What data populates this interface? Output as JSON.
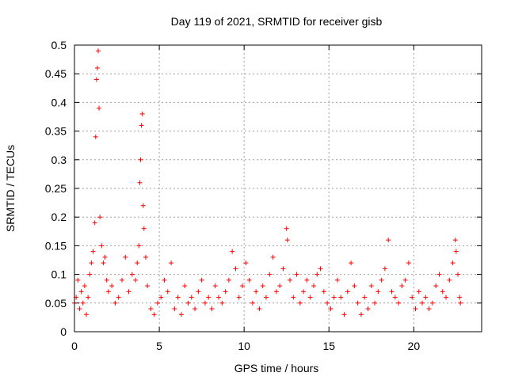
{
  "chart_data": {
    "type": "scatter",
    "title": "Day 119 of 2021, SRMTID for receiver gisb",
    "xlabel": "GPS time / hours",
    "ylabel": "SRMTID / TECUs",
    "xlim": [
      0,
      24
    ],
    "ylim": [
      0,
      0.5
    ],
    "x_ticks": [
      0,
      5,
      10,
      15,
      20
    ],
    "y_ticks": [
      0,
      0.05,
      0.1,
      0.15,
      0.2,
      0.25,
      0.3,
      0.35,
      0.4,
      0.45,
      0.5
    ],
    "x_tick_labels": [
      "0",
      "5",
      "10",
      "15",
      "20"
    ],
    "y_tick_labels": [
      "0",
      "0.05",
      "0.1",
      "0.15",
      "0.2",
      "0.25",
      "0.3",
      "0.35",
      "0.4",
      "0.45",
      "0.5"
    ],
    "grid": true,
    "marker": "+",
    "color": "#ff0000",
    "series": [
      {
        "name": "SRMTID",
        "points": [
          [
            0.0,
            0.05
          ],
          [
            0.1,
            0.06
          ],
          [
            0.2,
            0.09
          ],
          [
            0.3,
            0.04
          ],
          [
            0.4,
            0.07
          ],
          [
            0.5,
            0.05
          ],
          [
            0.6,
            0.08
          ],
          [
            0.7,
            0.03
          ],
          [
            0.8,
            0.06
          ],
          [
            0.9,
            0.1
          ],
          [
            1.0,
            0.12
          ],
          [
            1.1,
            0.14
          ],
          [
            1.2,
            0.19
          ],
          [
            1.25,
            0.34
          ],
          [
            1.3,
            0.44
          ],
          [
            1.35,
            0.46
          ],
          [
            1.4,
            0.49
          ],
          [
            1.45,
            0.39
          ],
          [
            1.5,
            0.2
          ],
          [
            1.6,
            0.15
          ],
          [
            1.7,
            0.12
          ],
          [
            1.8,
            0.13
          ],
          [
            1.9,
            0.09
          ],
          [
            2.0,
            0.07
          ],
          [
            2.2,
            0.08
          ],
          [
            2.4,
            0.05
          ],
          [
            2.6,
            0.06
          ],
          [
            2.8,
            0.09
          ],
          [
            3.0,
            0.13
          ],
          [
            3.2,
            0.07
          ],
          [
            3.4,
            0.1
          ],
          [
            3.6,
            0.09
          ],
          [
            3.7,
            0.12
          ],
          [
            3.8,
            0.15
          ],
          [
            3.85,
            0.26
          ],
          [
            3.9,
            0.3
          ],
          [
            3.95,
            0.36
          ],
          [
            4.0,
            0.38
          ],
          [
            4.05,
            0.22
          ],
          [
            4.1,
            0.18
          ],
          [
            4.2,
            0.13
          ],
          [
            4.3,
            0.08
          ],
          [
            4.5,
            0.04
          ],
          [
            4.7,
            0.03
          ],
          [
            4.9,
            0.05
          ],
          [
            5.1,
            0.06
          ],
          [
            5.3,
            0.09
          ],
          [
            5.5,
            0.07
          ],
          [
            5.7,
            0.12
          ],
          [
            5.9,
            0.04
          ],
          [
            6.1,
            0.06
          ],
          [
            6.3,
            0.03
          ],
          [
            6.5,
            0.08
          ],
          [
            6.7,
            0.05
          ],
          [
            6.9,
            0.06
          ],
          [
            7.1,
            0.04
          ],
          [
            7.3,
            0.07
          ],
          [
            7.5,
            0.09
          ],
          [
            7.7,
            0.05
          ],
          [
            7.9,
            0.06
          ],
          [
            8.1,
            0.04
          ],
          [
            8.3,
            0.08
          ],
          [
            8.5,
            0.06
          ],
          [
            8.7,
            0.05
          ],
          [
            8.9,
            0.07
          ],
          [
            9.1,
            0.09
          ],
          [
            9.3,
            0.14
          ],
          [
            9.5,
            0.11
          ],
          [
            9.7,
            0.06
          ],
          [
            9.9,
            0.08
          ],
          [
            10.1,
            0.12
          ],
          [
            10.3,
            0.09
          ],
          [
            10.5,
            0.05
          ],
          [
            10.7,
            0.07
          ],
          [
            10.9,
            0.04
          ],
          [
            11.1,
            0.08
          ],
          [
            11.3,
            0.06
          ],
          [
            11.5,
            0.1
          ],
          [
            11.7,
            0.13
          ],
          [
            11.9,
            0.07
          ],
          [
            12.1,
            0.08
          ],
          [
            12.3,
            0.11
          ],
          [
            12.5,
            0.18
          ],
          [
            12.55,
            0.16
          ],
          [
            12.7,
            0.09
          ],
          [
            12.9,
            0.06
          ],
          [
            13.1,
            0.1
          ],
          [
            13.3,
            0.05
          ],
          [
            13.5,
            0.07
          ],
          [
            13.7,
            0.09
          ],
          [
            13.9,
            0.06
          ],
          [
            14.1,
            0.08
          ],
          [
            14.3,
            0.1
          ],
          [
            14.5,
            0.11
          ],
          [
            14.7,
            0.07
          ],
          [
            14.9,
            0.05
          ],
          [
            15.1,
            0.04
          ],
          [
            15.3,
            0.06
          ],
          [
            15.5,
            0.09
          ],
          [
            15.7,
            0.06
          ],
          [
            15.9,
            0.03
          ],
          [
            16.1,
            0.07
          ],
          [
            16.3,
            0.12
          ],
          [
            16.5,
            0.08
          ],
          [
            16.7,
            0.05
          ],
          [
            16.9,
            0.03
          ],
          [
            17.1,
            0.06
          ],
          [
            17.3,
            0.04
          ],
          [
            17.5,
            0.08
          ],
          [
            17.7,
            0.05
          ],
          [
            17.9,
            0.07
          ],
          [
            18.1,
            0.09
          ],
          [
            18.3,
            0.11
          ],
          [
            18.5,
            0.16
          ],
          [
            18.7,
            0.07
          ],
          [
            18.9,
            0.06
          ],
          [
            19.1,
            0.05
          ],
          [
            19.3,
            0.08
          ],
          [
            19.5,
            0.09
          ],
          [
            19.7,
            0.12
          ],
          [
            19.9,
            0.06
          ],
          [
            20.1,
            0.04
          ],
          [
            20.3,
            0.07
          ],
          [
            20.5,
            0.05
          ],
          [
            20.7,
            0.06
          ],
          [
            20.9,
            0.04
          ],
          [
            21.1,
            0.05
          ],
          [
            21.3,
            0.08
          ],
          [
            21.5,
            0.1
          ],
          [
            21.7,
            0.07
          ],
          [
            21.9,
            0.06
          ],
          [
            22.1,
            0.09
          ],
          [
            22.3,
            0.12
          ],
          [
            22.45,
            0.16
          ],
          [
            22.5,
            0.14
          ],
          [
            22.6,
            0.1
          ],
          [
            22.7,
            0.06
          ],
          [
            22.75,
            0.05
          ]
        ]
      }
    ]
  }
}
